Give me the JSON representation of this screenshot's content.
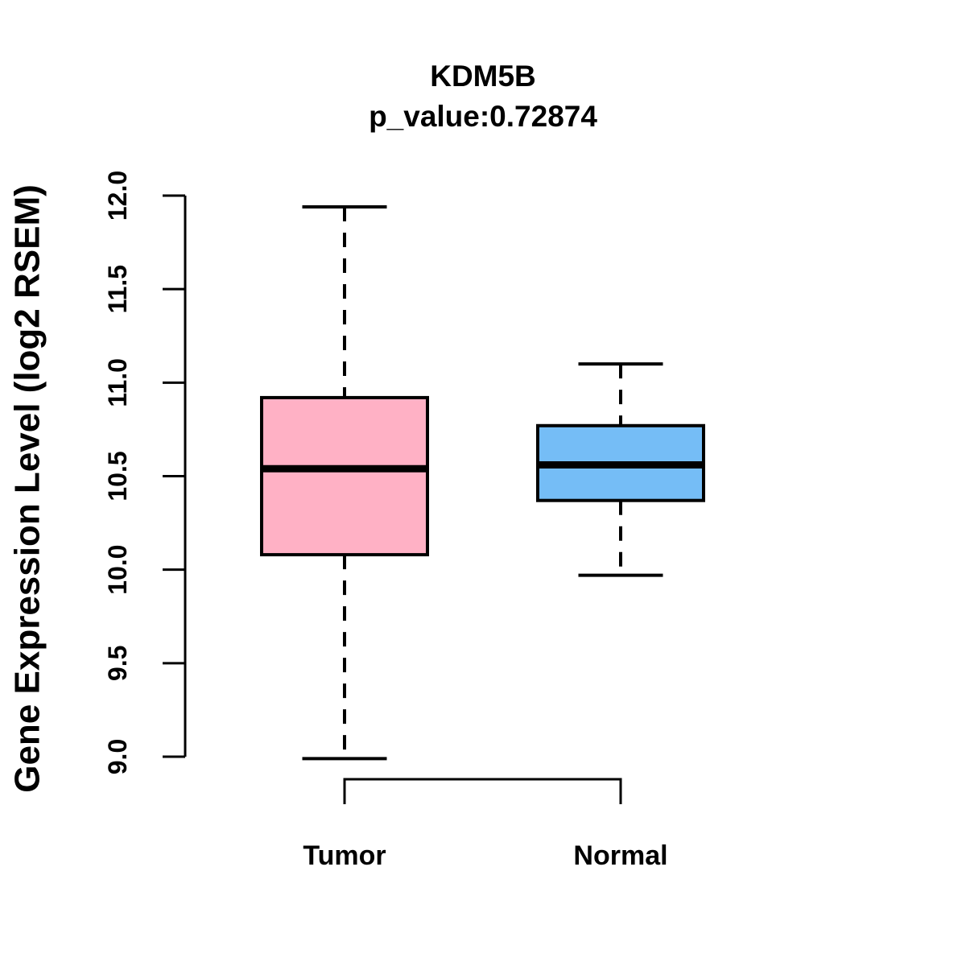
{
  "title": {
    "gene": "KDM5B",
    "subtitle": "p_value:0.72874"
  },
  "chart_data": {
    "type": "boxplot",
    "title": "KDM5B",
    "subtitle": "p_value:0.72874",
    "p_value": 0.72874,
    "ylabel": "Gene Expression Level (log2 RSEM)",
    "ylim": [
      9.0,
      12.0
    ],
    "y_ticks": [
      9.0,
      9.5,
      10.0,
      10.5,
      11.0,
      11.5,
      12.0
    ],
    "y_tick_labels": [
      "9.0",
      "9.5",
      "10.0",
      "10.5",
      "11.0",
      "11.5",
      "12.0"
    ],
    "categories": [
      "Tumor",
      "Normal"
    ],
    "groups": [
      {
        "label": "Tumor",
        "fill_color": "#FFB1C5",
        "stats": {
          "whisker_low": 8.99,
          "q1": 10.08,
          "median": 10.54,
          "q3": 10.92,
          "whisker_high": 11.94
        }
      },
      {
        "label": "Normal",
        "fill_color": "#75BDF6",
        "stats": {
          "whisker_low": 9.97,
          "q1": 10.37,
          "median": 10.56,
          "q3": 10.77,
          "whisker_high": 11.1
        }
      }
    ],
    "grid": false,
    "legend": "none",
    "box_border_color": "#000000",
    "axis_color": "#000000",
    "whisker_style": "dashed",
    "background_color": "#FFFFFF"
  }
}
